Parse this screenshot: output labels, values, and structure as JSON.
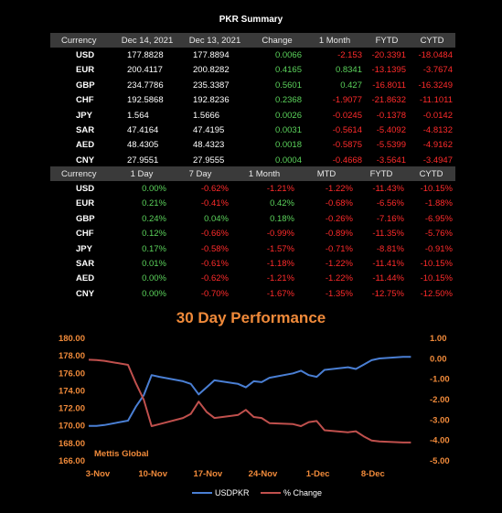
{
  "summary": {
    "title": "PKR Summary",
    "headers": [
      "Currency",
      "Dec 14, 2021",
      "Dec 13, 2021",
      "Change",
      "1 Month",
      "FYTD",
      "CYTD"
    ],
    "rows": [
      {
        "currency": "USD",
        "v1": "177.8828",
        "v2": "177.8894",
        "change": "0.0066",
        "m1": "-2.153",
        "fytd": "-20.3391",
        "cytd": "-18.0484"
      },
      {
        "currency": "EUR",
        "v1": "200.4117",
        "v2": "200.8282",
        "change": "0.4165",
        "m1": "0.8341",
        "fytd": "-13.1395",
        "cytd": "-3.7674"
      },
      {
        "currency": "GBP",
        "v1": "234.7786",
        "v2": "235.3387",
        "change": "0.5601",
        "m1": "0.427",
        "fytd": "-16.8011",
        "cytd": "-16.3249"
      },
      {
        "currency": "CHF",
        "v1": "192.5868",
        "v2": "192.8236",
        "change": "0.2368",
        "m1": "-1.9077",
        "fytd": "-21.8632",
        "cytd": "-11.1011"
      },
      {
        "currency": "JPY",
        "v1": "1.564",
        "v2": "1.5666",
        "change": "0.0026",
        "m1": "-0.0245",
        "fytd": "-0.1378",
        "cytd": "-0.0142"
      },
      {
        "currency": "SAR",
        "v1": "47.4164",
        "v2": "47.4195",
        "change": "0.0031",
        "m1": "-0.5614",
        "fytd": "-5.4092",
        "cytd": "-4.8132"
      },
      {
        "currency": "AED",
        "v1": "48.4305",
        "v2": "48.4323",
        "change": "0.0018",
        "m1": "-0.5875",
        "fytd": "-5.5399",
        "cytd": "-4.9162"
      },
      {
        "currency": "CNY",
        "v1": "27.9551",
        "v2": "27.9555",
        "change": "0.0004",
        "m1": "-0.4668",
        "fytd": "-3.5641",
        "cytd": "-3.4947"
      }
    ]
  },
  "performance_table": {
    "headers": [
      "Currency",
      "1 Day",
      "7 Day",
      "1 Month",
      "MTD",
      "FYTD",
      "CYTD"
    ],
    "rows": [
      {
        "currency": "USD",
        "d1": "0.00%",
        "d7": "-0.62%",
        "m1": "-1.21%",
        "mtd": "-1.22%",
        "fytd": "-11.43%",
        "cytd": "-10.15%"
      },
      {
        "currency": "EUR",
        "d1": "0.21%",
        "d7": "-0.41%",
        "m1": "0.42%",
        "mtd": "-0.68%",
        "fytd": "-6.56%",
        "cytd": "-1.88%"
      },
      {
        "currency": "GBP",
        "d1": "0.24%",
        "d7": "0.04%",
        "m1": "0.18%",
        "mtd": "-0.26%",
        "fytd": "-7.16%",
        "cytd": "-6.95%"
      },
      {
        "currency": "CHF",
        "d1": "0.12%",
        "d7": "-0.66%",
        "m1": "-0.99%",
        "mtd": "-0.89%",
        "fytd": "-11.35%",
        "cytd": "-5.76%"
      },
      {
        "currency": "JPY",
        "d1": "0.17%",
        "d7": "-0.58%",
        "m1": "-1.57%",
        "mtd": "-0.71%",
        "fytd": "-8.81%",
        "cytd": "-0.91%"
      },
      {
        "currency": "SAR",
        "d1": "0.01%",
        "d7": "-0.61%",
        "m1": "-1.18%",
        "mtd": "-1.22%",
        "fytd": "-11.41%",
        "cytd": "-10.15%"
      },
      {
        "currency": "AED",
        "d1": "0.00%",
        "d7": "-0.62%",
        "m1": "-1.21%",
        "mtd": "-1.22%",
        "fytd": "-11.44%",
        "cytd": "-10.15%"
      },
      {
        "currency": "CNY",
        "d1": "0.00%",
        "d7": "-0.70%",
        "m1": "-1.67%",
        "mtd": "-1.35%",
        "fytd": "-12.75%",
        "cytd": "-12.50%"
      }
    ]
  },
  "colors": {
    "positive": "#5bd25b",
    "negative": "#ff2b2b",
    "accent": "#f08a3a",
    "usdpkr_line": "#4a7fd4",
    "pct_line": "#c0504d"
  },
  "chart_data": {
    "type": "line",
    "title": "30 Day Performance",
    "watermark": "Mettis Global",
    "x_tick_labels": [
      "3-Nov",
      "10-Nov",
      "17-Nov",
      "24-Nov",
      "1-Dec",
      "8-Dec"
    ],
    "x": [
      "2021-11-03",
      "2021-11-04",
      "2021-11-05",
      "2021-11-08",
      "2021-11-09",
      "2021-11-10",
      "2021-11-11",
      "2021-11-12",
      "2021-11-15",
      "2021-11-16",
      "2021-11-17",
      "2021-11-18",
      "2021-11-19",
      "2021-11-22",
      "2021-11-23",
      "2021-11-24",
      "2021-11-25",
      "2021-11-26",
      "2021-11-29",
      "2021-11-30",
      "2021-12-01",
      "2021-12-02",
      "2021-12-03",
      "2021-12-06",
      "2021-12-07",
      "2021-12-08",
      "2021-12-09",
      "2021-12-10",
      "2021-12-13",
      "2021-12-14"
    ],
    "series": [
      {
        "name": "USDPKR",
        "axis": "left",
        "values": [
          170.0,
          170.0,
          170.1,
          170.6,
          172.2,
          173.5,
          175.8,
          175.6,
          175.1,
          174.8,
          173.6,
          174.4,
          175.2,
          174.8,
          174.4,
          175.1,
          175.0,
          175.5,
          176.0,
          176.3,
          175.8,
          175.6,
          176.4,
          176.7,
          176.5,
          177.0,
          177.5,
          177.7,
          177.89,
          177.88
        ]
      },
      {
        "name": "% Change",
        "axis": "right",
        "values": [
          -0.05,
          -0.06,
          -0.1,
          -0.3,
          -1.2,
          -2.0,
          -3.3,
          -3.2,
          -2.9,
          -2.7,
          -2.1,
          -2.6,
          -2.9,
          -2.75,
          -2.5,
          -2.85,
          -2.9,
          -3.15,
          -3.2,
          -3.3,
          -3.1,
          -3.05,
          -3.5,
          -3.6,
          -3.55,
          -3.8,
          -4.0,
          -4.05,
          -4.1,
          -4.1
        ]
      }
    ],
    "y_left": {
      "min": 166,
      "max": 180,
      "ticks": [
        "166.00",
        "168.00",
        "170.00",
        "172.00",
        "174.00",
        "176.00",
        "178.00",
        "180.00"
      ]
    },
    "y_right": {
      "min": -5,
      "max": 1,
      "ticks": [
        "-5.00",
        "-4.00",
        "-3.00",
        "-2.00",
        "-1.00",
        "0.00",
        "1.00"
      ]
    },
    "legend_position": "bottom"
  }
}
